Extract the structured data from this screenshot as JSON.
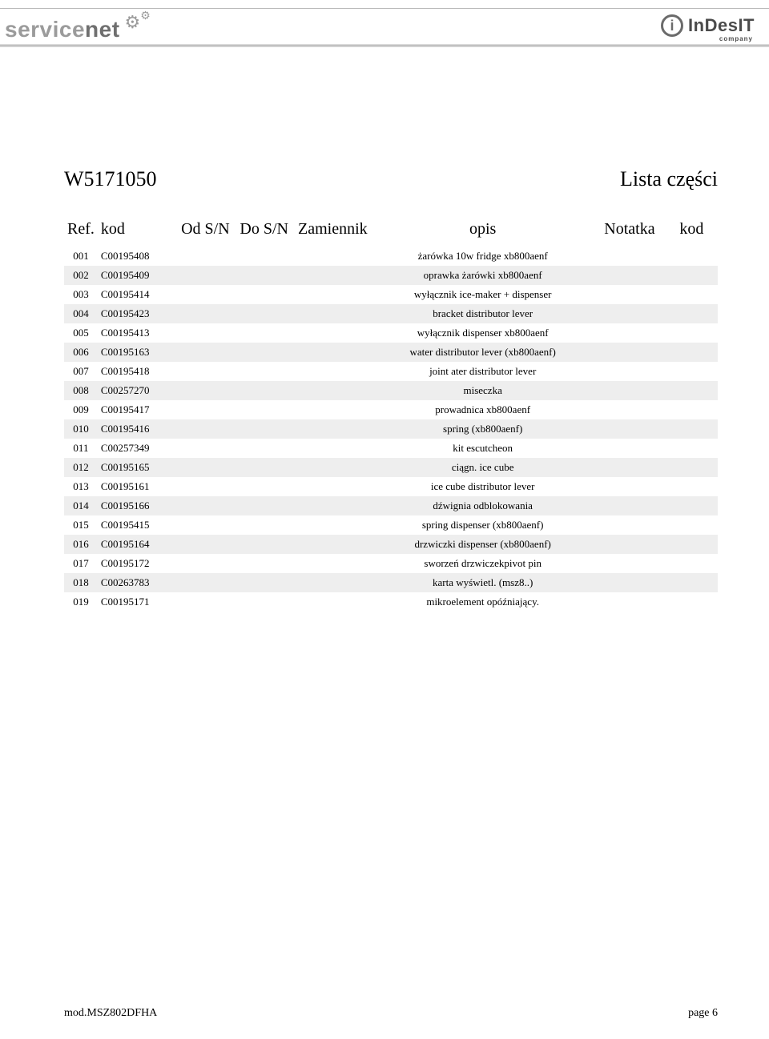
{
  "header": {
    "left_logo_main": "service",
    "left_logo_sub": "net",
    "right_logo_word": "InDesIT",
    "right_logo_sub": "company"
  },
  "title": {
    "code": "W5171050",
    "label": "Lista części"
  },
  "table": {
    "columns": [
      "Ref.",
      "kod",
      "Od S/N",
      "Do S/N",
      "Zamiennik",
      "opis",
      "Notatka",
      "kod"
    ],
    "rows": [
      {
        "ref": "001",
        "kod": "C00195408",
        "odsn": "",
        "dosn": "",
        "zam": "",
        "opis": "żarówka 10w fridge xb800aenf",
        "not": "",
        "kod2": ""
      },
      {
        "ref": "002",
        "kod": "C00195409",
        "odsn": "",
        "dosn": "",
        "zam": "",
        "opis": "oprawka żarówki xb800aenf",
        "not": "",
        "kod2": ""
      },
      {
        "ref": "003",
        "kod": "C00195414",
        "odsn": "",
        "dosn": "",
        "zam": "",
        "opis": "wyłącznik ice-maker + dispenser",
        "not": "",
        "kod2": ""
      },
      {
        "ref": "004",
        "kod": "C00195423",
        "odsn": "",
        "dosn": "",
        "zam": "",
        "opis": "bracket distributor lever",
        "not": "",
        "kod2": ""
      },
      {
        "ref": "005",
        "kod": "C00195413",
        "odsn": "",
        "dosn": "",
        "zam": "",
        "opis": "wyłącznik dispenser xb800aenf",
        "not": "",
        "kod2": ""
      },
      {
        "ref": "006",
        "kod": "C00195163",
        "odsn": "",
        "dosn": "",
        "zam": "",
        "opis": "water distributor lever (xb800aenf)",
        "not": "",
        "kod2": ""
      },
      {
        "ref": "007",
        "kod": "C00195418",
        "odsn": "",
        "dosn": "",
        "zam": "",
        "opis": "joint ater distributor lever",
        "not": "",
        "kod2": ""
      },
      {
        "ref": "008",
        "kod": "C00257270",
        "odsn": "",
        "dosn": "",
        "zam": "",
        "opis": "miseczka",
        "not": "",
        "kod2": ""
      },
      {
        "ref": "009",
        "kod": "C00195417",
        "odsn": "",
        "dosn": "",
        "zam": "",
        "opis": "prowadnica xb800aenf",
        "not": "",
        "kod2": ""
      },
      {
        "ref": "010",
        "kod": "C00195416",
        "odsn": "",
        "dosn": "",
        "zam": "",
        "opis": "spring (xb800aenf)",
        "not": "",
        "kod2": ""
      },
      {
        "ref": "011",
        "kod": "C00257349",
        "odsn": "",
        "dosn": "",
        "zam": "",
        "opis": "kit escutcheon",
        "not": "",
        "kod2": ""
      },
      {
        "ref": "012",
        "kod": "C00195165",
        "odsn": "",
        "dosn": "",
        "zam": "",
        "opis": "ciągn.  ice cube",
        "not": "",
        "kod2": ""
      },
      {
        "ref": "013",
        "kod": "C00195161",
        "odsn": "",
        "dosn": "",
        "zam": "",
        "opis": "ice cube distributor lever",
        "not": "",
        "kod2": ""
      },
      {
        "ref": "014",
        "kod": "C00195166",
        "odsn": "",
        "dosn": "",
        "zam": "",
        "opis": "dźwignia odblokowania",
        "not": "",
        "kod2": ""
      },
      {
        "ref": "015",
        "kod": "C00195415",
        "odsn": "",
        "dosn": "",
        "zam": "",
        "opis": "spring dispenser (xb800aenf)",
        "not": "",
        "kod2": ""
      },
      {
        "ref": "016",
        "kod": "C00195164",
        "odsn": "",
        "dosn": "",
        "zam": "",
        "opis": "drzwiczki dispenser (xb800aenf)",
        "not": "",
        "kod2": ""
      },
      {
        "ref": "017",
        "kod": "C00195172",
        "odsn": "",
        "dosn": "",
        "zam": "",
        "opis": "sworzeń drzwiczekpivot pin",
        "not": "",
        "kod2": ""
      },
      {
        "ref": "018",
        "kod": "C00263783",
        "odsn": "",
        "dosn": "",
        "zam": "",
        "opis": "karta wyświetl. (msz8..)",
        "not": "",
        "kod2": ""
      },
      {
        "ref": "019",
        "kod": "C00195171",
        "odsn": "",
        "dosn": "",
        "zam": "",
        "opis": "mikroelement opóźniający.",
        "not": "",
        "kod2": ""
      }
    ]
  },
  "footer": {
    "model": "mod.MSZ802DFHA",
    "page": "page 6"
  },
  "colors": {
    "row_even_bg": "#eeeeee",
    "row_odd_bg": "#ffffff",
    "text": "#000000",
    "logo_grey": "#9b9b9b",
    "logo_grey_dark": "#6f6f6f",
    "indesit_grey": "#4b4b4b"
  }
}
